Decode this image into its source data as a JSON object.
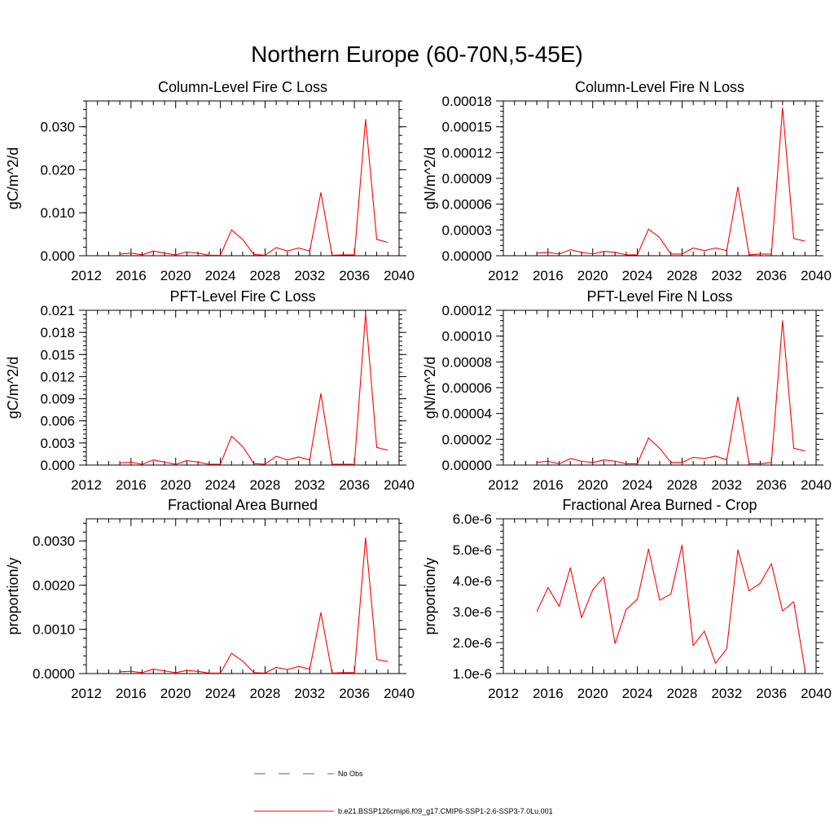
{
  "figure": {
    "title": "Northern Europe (60-70N,5-45E)"
  },
  "legend": {
    "items": [
      {
        "label": "No Obs",
        "color": "#5a5aa8",
        "style": "dashed"
      },
      {
        "label": "b.e21.BSSP126cmip6.f09_g17.CMIP6-SSP1-2.6-SSP3-7.0Lu.001",
        "color": "#ff0000",
        "style": "solid"
      }
    ]
  },
  "chart_data": [
    {
      "type": "line",
      "title": "Column-Level Fire C Loss",
      "ylabel": "gC/m^2/d",
      "xlim": [
        2012,
        2040
      ],
      "ylim": [
        0,
        0.036
      ],
      "x_ticks": [
        "2012",
        "2016",
        "2020",
        "2024",
        "2028",
        "2032",
        "2036",
        "2040"
      ],
      "y_ticks": [
        "0.000",
        "0.010",
        "0.020",
        "0.030"
      ],
      "y_tick_values": [
        0,
        0.01,
        0.02,
        0.03
      ],
      "series": [
        {
          "color": "#ff0000",
          "x": [
            2015,
            2016,
            2017,
            2018,
            2019,
            2020,
            2021,
            2022,
            2023,
            2024,
            2025,
            2026,
            2027,
            2028,
            2029,
            2030,
            2031,
            2032,
            2033,
            2034,
            2035,
            2036,
            2037,
            2038,
            2039
          ],
          "y": [
            0.0004,
            0.0006,
            0.0002,
            0.0011,
            0.0006,
            0.0002,
            0.0009,
            0.0006,
            0.0001,
            0.0001,
            0.006,
            0.0038,
            0.0003,
            0.0001,
            0.0019,
            0.0011,
            0.0018,
            0.0011,
            0.0147,
            0.0001,
            0.0002,
            0.0002,
            0.0317,
            0.0038,
            0.0031
          ]
        }
      ]
    },
    {
      "type": "line",
      "title": "Column-Level Fire N Loss",
      "ylabel": "gN/m^2/d",
      "xlim": [
        2012,
        2040
      ],
      "ylim": [
        0,
        0.00018
      ],
      "x_ticks": [
        "2012",
        "2016",
        "2020",
        "2024",
        "2028",
        "2032",
        "2036",
        "2040"
      ],
      "y_ticks": [
        "0.00000",
        "0.00003",
        "0.00006",
        "0.00009",
        "0.00012",
        "0.00015",
        "0.00018"
      ],
      "y_tick_values": [
        0,
        3e-05,
        6e-05,
        9e-05,
        0.00012,
        0.00015,
        0.00018
      ],
      "series": [
        {
          "color": "#ff0000",
          "x": [
            2015,
            2016,
            2017,
            2018,
            2019,
            2020,
            2021,
            2022,
            2023,
            2024,
            2025,
            2026,
            2027,
            2028,
            2029,
            2030,
            2031,
            2032,
            2033,
            2034,
            2035,
            2036,
            2037,
            2038,
            2039
          ],
          "y": [
            3e-06,
            4e-06,
            2e-06,
            7e-06,
            4e-06,
            2e-06,
            5e-06,
            4e-06,
            1e-06,
            1e-06,
            3.1e-05,
            2.1e-05,
            2e-06,
            2e-06,
            9e-06,
            6e-06,
            9e-06,
            6e-06,
            8e-05,
            1e-06,
            2e-06,
            2e-06,
            0.000172,
            2e-05,
            1.7e-05
          ]
        }
      ]
    },
    {
      "type": "line",
      "title": "PFT-Level Fire C Loss",
      "ylabel": "gC/m^2/d",
      "xlim": [
        2012,
        2040
      ],
      "ylim": [
        0,
        0.021
      ],
      "x_ticks": [
        "2012",
        "2016",
        "2020",
        "2024",
        "2028",
        "2032",
        "2036",
        "2040"
      ],
      "y_ticks": [
        "0.000",
        "0.003",
        "0.006",
        "0.009",
        "0.012",
        "0.015",
        "0.018",
        "0.021"
      ],
      "y_tick_values": [
        0,
        0.003,
        0.006,
        0.009,
        0.012,
        0.015,
        0.018,
        0.021
      ],
      "series": [
        {
          "color": "#ff0000",
          "x": [
            2015,
            2016,
            2017,
            2018,
            2019,
            2020,
            2021,
            2022,
            2023,
            2024,
            2025,
            2026,
            2027,
            2028,
            2029,
            2030,
            2031,
            2032,
            2033,
            2034,
            2035,
            2036,
            2037,
            2038,
            2039
          ],
          "y": [
            0.0003,
            0.0004,
            0.0001,
            0.0007,
            0.0004,
            0.0001,
            0.0006,
            0.0004,
            0.0001,
            0.0001,
            0.0039,
            0.0025,
            0.0002,
            0.0001,
            0.0012,
            0.0007,
            0.0011,
            0.0007,
            0.0097,
            0.0001,
            0.0001,
            0.0001,
            0.0206,
            0.0024,
            0.002
          ]
        }
      ]
    },
    {
      "type": "line",
      "title": "PFT-Level Fire N Loss",
      "ylabel": "gN/m^2/d",
      "xlim": [
        2012,
        2040
      ],
      "ylim": [
        0,
        0.00012
      ],
      "x_ticks": [
        "2012",
        "2016",
        "2020",
        "2024",
        "2028",
        "2032",
        "2036",
        "2040"
      ],
      "y_ticks": [
        "0.00000",
        "0.00002",
        "0.00004",
        "0.00006",
        "0.00008",
        "0.00010",
        "0.00012"
      ],
      "y_tick_values": [
        0,
        2e-05,
        4e-05,
        6e-05,
        8e-05,
        0.0001,
        0.00012
      ],
      "series": [
        {
          "color": "#ff0000",
          "x": [
            2015,
            2016,
            2017,
            2018,
            2019,
            2020,
            2021,
            2022,
            2023,
            2024,
            2025,
            2026,
            2027,
            2028,
            2029,
            2030,
            2031,
            2032,
            2033,
            2034,
            2035,
            2036,
            2037,
            2038,
            2039
          ],
          "y": [
            2e-06,
            3e-06,
            1e-06,
            5e-06,
            3e-06,
            2e-06,
            4e-06,
            3e-06,
            1e-06,
            1e-06,
            2.1e-05,
            1.3e-05,
            2e-06,
            2e-06,
            6e-06,
            5e-06,
            7e-06,
            4e-06,
            5.3e-05,
            1e-06,
            1e-06,
            2e-06,
            0.000112,
            1.3e-05,
            1.1e-05
          ]
        }
      ]
    },
    {
      "type": "line",
      "title": "Fractional Area Burned",
      "ylabel": "proportion/y",
      "xlim": [
        2012,
        2040
      ],
      "ylim": [
        0,
        0.0035
      ],
      "x_ticks": [
        "2012",
        "2016",
        "2020",
        "2024",
        "2028",
        "2032",
        "2036",
        "2040"
      ],
      "y_ticks": [
        "0.0000",
        "0.0010",
        "0.0020",
        "0.0030"
      ],
      "y_tick_values": [
        0,
        0.001,
        0.002,
        0.003
      ],
      "series": [
        {
          "color": "#ff0000",
          "x": [
            2015,
            2016,
            2017,
            2018,
            2019,
            2020,
            2021,
            2022,
            2023,
            2024,
            2025,
            2026,
            2027,
            2028,
            2029,
            2030,
            2031,
            2032,
            2033,
            2034,
            2035,
            2036,
            2037,
            2038,
            2039
          ],
          "y": [
            4e-05,
            5e-05,
            2e-05,
            0.0001,
            6e-05,
            2e-05,
            7e-05,
            5e-05,
            1e-05,
            1e-05,
            0.00046,
            0.00028,
            2e-05,
            1e-05,
            0.00014,
            9e-05,
            0.00016,
            0.0001,
            0.00138,
            1e-05,
            2e-05,
            2e-05,
            0.00307,
            0.00032,
            0.00027
          ]
        }
      ]
    },
    {
      "type": "line",
      "title": "Fractional Area Burned - Crop",
      "ylabel": "proportion/y",
      "xlim": [
        2012,
        2040
      ],
      "ylim": [
        1e-06,
        6e-06
      ],
      "x_ticks": [
        "2012",
        "2016",
        "2020",
        "2024",
        "2028",
        "2032",
        "2036",
        "2040"
      ],
      "y_ticks": [
        "1.0e-6",
        "2.0e-6",
        "3.0e-6",
        "4.0e-6",
        "5.0e-6",
        "6.0e-6"
      ],
      "y_tick_values": [
        1e-06,
        2e-06,
        3e-06,
        4e-06,
        5e-06,
        6e-06
      ],
      "series": [
        {
          "color": "#ff0000",
          "x": [
            2015,
            2016,
            2017,
            2018,
            2019,
            2020,
            2021,
            2022,
            2023,
            2024,
            2025,
            2026,
            2027,
            2028,
            2029,
            2030,
            2031,
            2032,
            2033,
            2034,
            2035,
            2036,
            2037,
            2038,
            2039
          ],
          "y": [
            3e-06,
            3.78e-06,
            3.17e-06,
            4.42e-06,
            2.8e-06,
            3.7e-06,
            4.12e-06,
            1.97e-06,
            3.07e-06,
            3.4e-06,
            5.02e-06,
            3.37e-06,
            3.57e-06,
            5.15e-06,
            1.9e-06,
            2.37e-06,
            1.33e-06,
            1.8e-06,
            5e-06,
            3.67e-06,
            3.92e-06,
            4.55e-06,
            3.02e-06,
            3.32e-06,
            1.12e-06
          ]
        }
      ]
    }
  ]
}
